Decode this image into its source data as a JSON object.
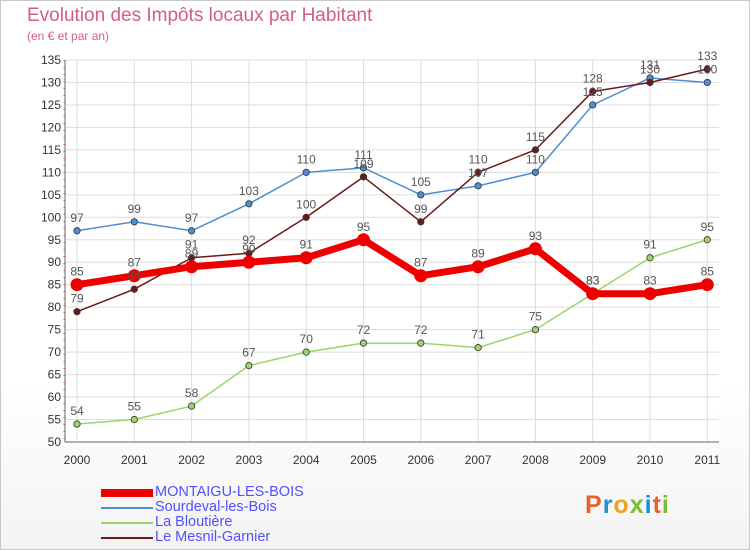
{
  "header": {
    "title": "Evolution des Impôts locaux par Habitant",
    "subtitle": "(en € et par an)"
  },
  "brand": {
    "letters": [
      "P",
      "r",
      "o",
      "x",
      "i",
      "t",
      "i"
    ],
    "colors": [
      "#e8622a",
      "#1e8fd6",
      "#f2a21a",
      "#7bbd2f",
      "#1e8fd6",
      "#e8622a",
      "#7bbd2f"
    ]
  },
  "chart_data": {
    "type": "line",
    "title": "Evolution des Impôts locaux par Habitant",
    "subtitle": "(en € et par an)",
    "xlabel": "",
    "ylabel": "",
    "x": [
      "2000",
      "2001",
      "2002",
      "2003",
      "2004",
      "2005",
      "2006",
      "2007",
      "2008",
      "2009",
      "2010",
      "2011"
    ],
    "ylim": [
      50,
      135
    ],
    "yticks": [
      50,
      55,
      60,
      65,
      70,
      75,
      80,
      85,
      90,
      95,
      100,
      105,
      110,
      115,
      120,
      125,
      130,
      135
    ],
    "grid": true,
    "legend_position": "bottom-left",
    "series": [
      {
        "name": "MONTAIGU-LES-BOIS",
        "color": "#ee0000",
        "emphasis": "thick",
        "values": [
          85,
          87,
          89,
          90,
          91,
          95,
          87,
          89,
          93,
          83,
          83,
          85
        ],
        "labels": [
          "85",
          "87",
          "89",
          "90",
          "91",
          "95",
          "87",
          "89",
          "93",
          "83",
          "83",
          "85"
        ]
      },
      {
        "name": "Sourdeval-les-Bois",
        "color": "#4f8fcf",
        "emphasis": "thin",
        "values": [
          97,
          99,
          97,
          103,
          110,
          111,
          105,
          107,
          110,
          125,
          131,
          130
        ],
        "labels": [
          "97",
          "99",
          "97",
          "103",
          "110",
          "111",
          "105",
          "107",
          "110",
          "125",
          "131",
          "130"
        ]
      },
      {
        "name": "La Bloutière",
        "color": "#9ad46a",
        "emphasis": "thin",
        "values": [
          54,
          55,
          58,
          67,
          70,
          72,
          72,
          71,
          75,
          83,
          91,
          95
        ],
        "labels": [
          "54",
          "55",
          "58",
          "67",
          "70",
          "72",
          "72",
          "71",
          "75",
          "83",
          "91",
          "95"
        ]
      },
      {
        "name": "Le Mesnil-Garnier",
        "color": "#6b1a1a",
        "emphasis": "thin",
        "values": [
          79,
          84,
          91,
          92,
          100,
          109,
          99,
          110,
          115,
          128,
          130,
          133
        ],
        "labels": [
          "79",
          "84",
          "91",
          "92",
          "100",
          "109",
          "99",
          "110",
          "115",
          "128",
          "130",
          "133"
        ]
      }
    ]
  }
}
